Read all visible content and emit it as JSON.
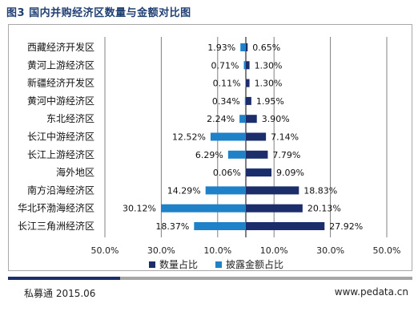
{
  "header": {
    "figure_title": "图3  国内并购经济区数量与金额对比图"
  },
  "footer": {
    "source": "私募通 2015.06",
    "website": "www.pedata.cn"
  },
  "colors": {
    "count": "#1b2d6b",
    "amount": "#1f82c8",
    "grid": "#808080",
    "zero_line": "#000000"
  },
  "chart_data": {
    "type": "bar",
    "orientation": "horizontal-diverging",
    "categories": [
      "西藏经济开发区",
      "黄河上游经济区",
      "新疆经济开发区",
      "黄河中游经济区",
      "东北经济区",
      "长江中游经济区",
      "长江上游经济区",
      "海外地区",
      "南方沿海经济区",
      "华北环渤海经济区",
      "长江三角洲经济区"
    ],
    "series": [
      {
        "name": "数量占比",
        "side": "right",
        "values": [
          0.65,
          1.3,
          1.3,
          1.95,
          3.9,
          7.14,
          7.79,
          9.09,
          18.83,
          20.13,
          27.92
        ],
        "labels": [
          "0.65%",
          "1.30%",
          "1.30%",
          "1.95%",
          "3.90%",
          "7.14%",
          "7.79%",
          "9.09%",
          "18.83%",
          "20.13%",
          "27.92%"
        ]
      },
      {
        "name": "披露金额占比",
        "side": "left",
        "values": [
          1.93,
          0.71,
          0.11,
          0.34,
          2.24,
          12.52,
          6.29,
          0.06,
          14.29,
          30.12,
          18.37
        ],
        "labels": [
          "1.93%",
          "0.71%",
          "0.11%",
          "0.34%",
          "2.24%",
          "12.52%",
          "6.29%",
          "0.06%",
          "14.29%",
          "30.12%",
          "18.37%"
        ]
      }
    ],
    "xlim": [
      -50,
      50
    ],
    "xticks": [
      -50,
      -30,
      -10,
      10,
      30,
      50
    ],
    "xtick_labels": [
      "50.0%",
      "30.0%",
      "10.0%",
      "10.0%",
      "30.0%",
      "50.0%"
    ],
    "grid": true,
    "legend": "bottom-center"
  }
}
